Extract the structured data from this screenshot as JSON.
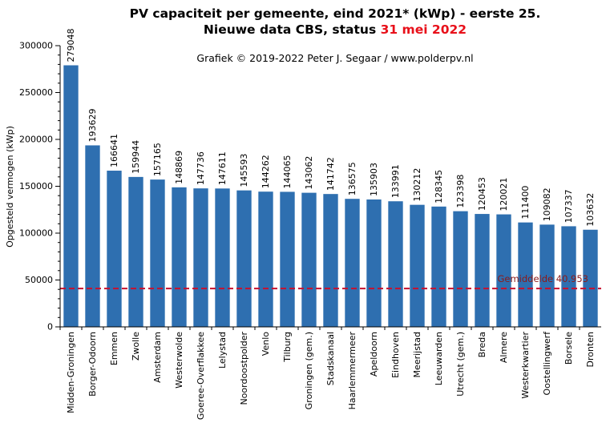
{
  "title_line1": "PV capaciteit per gemeente, eind 2021* (kWp) - eerste 25.",
  "title_line2_prefix": "Nieuwe data CBS, status ",
  "title_line2_date": "31 mei 2022",
  "credit": "Grafiek © 2019-2022 Peter J. Segaar / www.polderpv.nl",
  "colors": {
    "bar": "#2e6fb0",
    "average": "#c8102e",
    "date": "#e8101a"
  },
  "chart_data": {
    "type": "bar",
    "title": "PV capaciteit per gemeente, eind 2021* (kWp) - eerste 25.",
    "subtitle": "Nieuwe data CBS, status 31 mei 2022",
    "xlabel": "",
    "ylabel": "Opgesteld vermogen (kWp)",
    "ylim": [
      0,
      300000
    ],
    "yticks": [
      0,
      50000,
      100000,
      150000,
      200000,
      250000,
      300000
    ],
    "categories": [
      "Midden-Groningen",
      "Borger-Odoorn",
      "Emmen",
      "Zwolle",
      "Amsterdam",
      "Westerwolde",
      "Goeree-Overflakkee",
      "Lelystad",
      "Noordoostpolder",
      "Venlo",
      "Tilburg",
      "Groningen (gem.)",
      "Stadskanaal",
      "Haarlemmermeer",
      "Apeldoorn",
      "Eindhoven",
      "Meerijstad",
      "Leeuwarden",
      "Utrecht (gem.)",
      "Breda",
      "Almere",
      "Westerkwartier",
      "Oostellingwerf",
      "Borsele",
      "Dronten"
    ],
    "values": [
      279048,
      193629,
      166641,
      159944,
      157165,
      148869,
      147736,
      147611,
      145593,
      144262,
      144065,
      143062,
      141742,
      136575,
      135903,
      133991,
      130212,
      128345,
      123398,
      120453,
      120021,
      111400,
      109082,
      107337,
      103632
    ],
    "average": {
      "label": "Gemiddelde  40.953",
      "value": 40953
    },
    "grid": false
  }
}
